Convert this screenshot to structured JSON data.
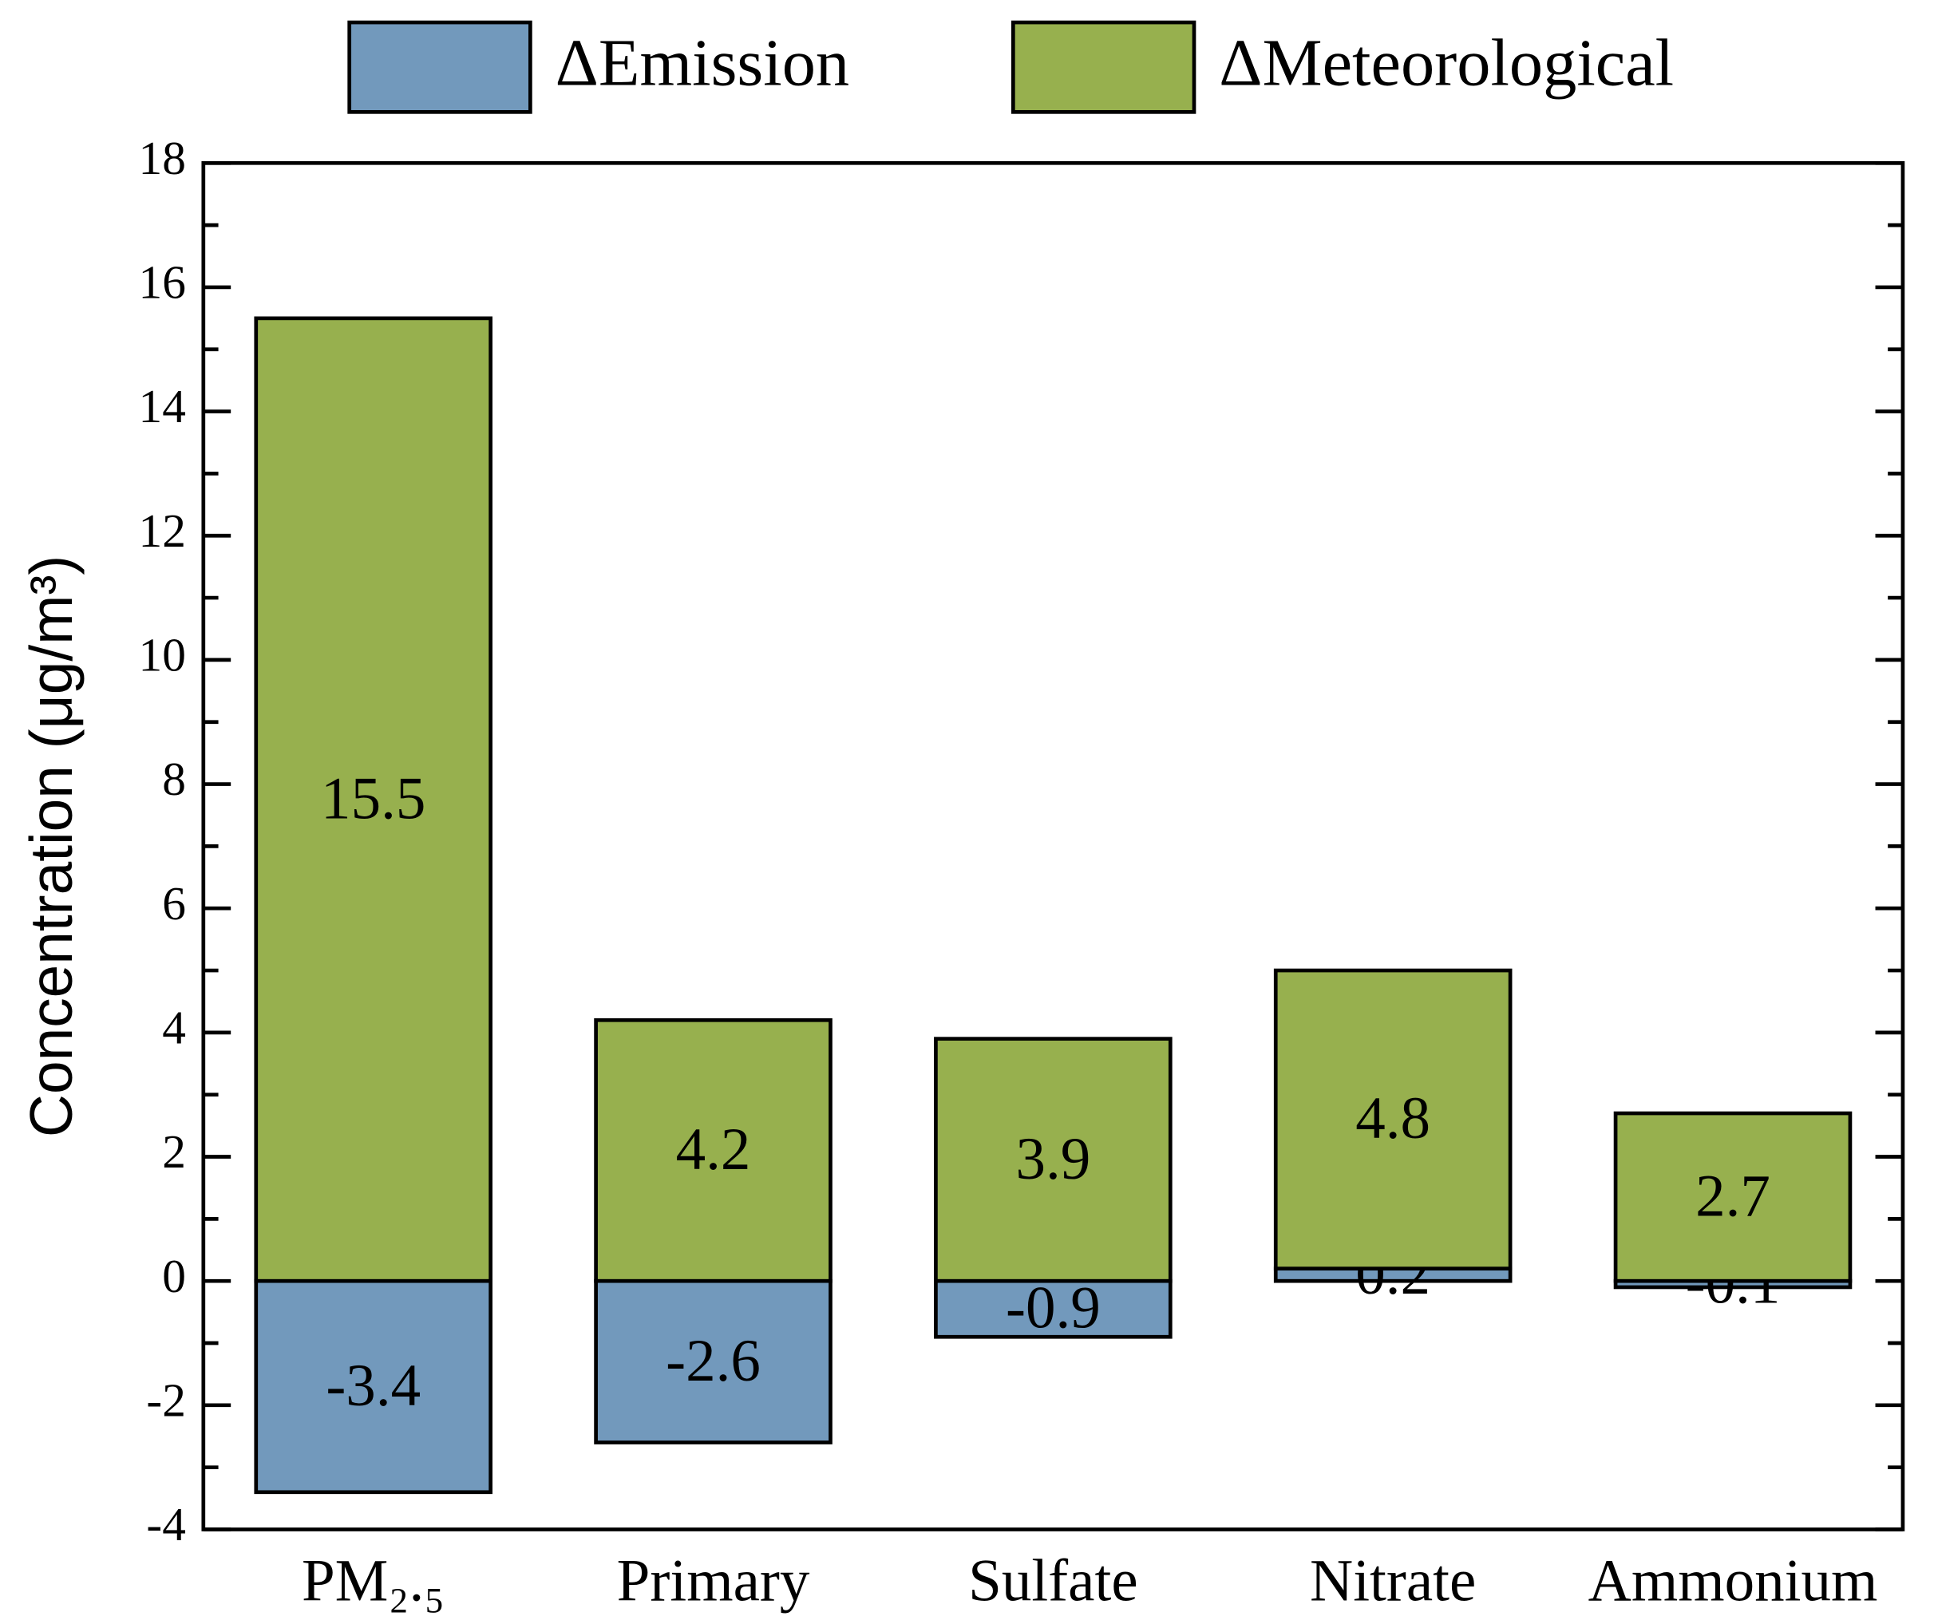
{
  "chart_data": {
    "type": "bar",
    "stacked": true,
    "y_label": "Concentration (μg/m³)",
    "categories": [
      "PM₂.₅",
      "Primary",
      "Sulfate",
      "Nitrate",
      "Ammonium"
    ],
    "series": [
      {
        "name": "ΔEmission",
        "color": "#7299bc",
        "values": [
          -3.4,
          -2.6,
          -0.9,
          0.2,
          -0.1
        ]
      },
      {
        "name": "ΔMeteorological",
        "color": "#97b04e",
        "values": [
          15.5,
          4.2,
          3.9,
          4.8,
          2.7
        ]
      }
    ],
    "ylim": [
      -4,
      18
    ],
    "yticks": [
      -4,
      -2,
      0,
      2,
      4,
      6,
      8,
      10,
      12,
      14,
      16,
      18
    ],
    "legend": "top",
    "data_labels": true
  }
}
